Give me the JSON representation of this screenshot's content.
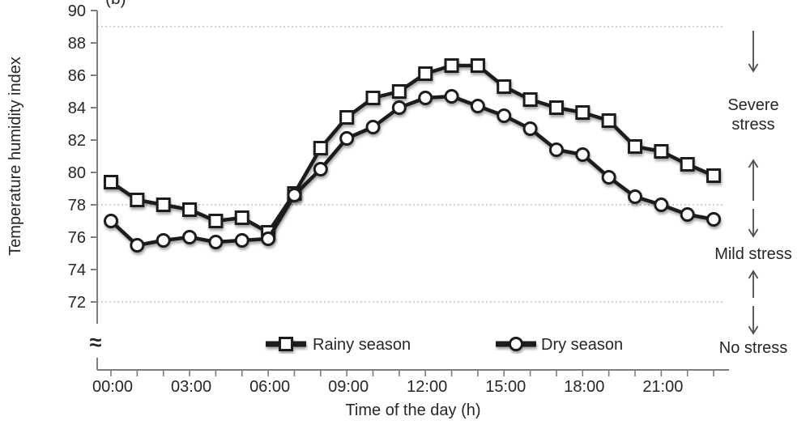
{
  "figure": {
    "panel_label": "(b)"
  },
  "chart_data": {
    "type": "line",
    "title": "",
    "xlabel": "Time of the day (h)",
    "ylabel": "Temperature humidity index",
    "ylim": [
      72,
      90
    ],
    "ytick_step": 2,
    "axis_break_symbol": "≈",
    "grid": "horizontal-dotted-reference-lines-only",
    "x_hours": [
      0,
      1,
      2,
      3,
      4,
      5,
      6,
      7,
      8,
      9,
      10,
      11,
      12,
      13,
      14,
      15,
      16,
      17,
      18,
      19,
      20,
      21,
      22,
      23
    ],
    "x_tick_hours": [
      0,
      3,
      6,
      9,
      12,
      15,
      18,
      21
    ],
    "x_tick_labels": [
      "00:00",
      "03:00",
      "06:00",
      "09:00",
      "12:00",
      "15:00",
      "18:00",
      "21:00"
    ],
    "reference_lines": [
      89,
      78,
      72
    ],
    "series": [
      {
        "name": "Rainy season",
        "marker": "square",
        "values": [
          79.4,
          78.3,
          78.0,
          77.7,
          77.0,
          77.2,
          76.3,
          78.7,
          81.5,
          83.4,
          84.6,
          85.0,
          86.1,
          86.6,
          86.6,
          85.3,
          84.5,
          84.0,
          83.7,
          83.2,
          81.6,
          81.3,
          80.5,
          79.8
        ]
      },
      {
        "name": "Dry season",
        "marker": "circle",
        "values": [
          77.0,
          75.5,
          75.8,
          76.0,
          75.7,
          75.8,
          75.9,
          78.6,
          80.2,
          82.1,
          82.8,
          84.0,
          84.6,
          84.7,
          84.1,
          83.5,
          82.7,
          81.4,
          81.1,
          79.7,
          78.5,
          78.0,
          77.4,
          77.1
        ]
      }
    ],
    "legend_position": "inside-bottom-center",
    "stress_zones": [
      {
        "label": "Severe stress",
        "lines": [
          "Severe",
          "stress"
        ],
        "range": [
          78,
          89
        ]
      },
      {
        "label": "Mild stress",
        "lines": [
          "Mild stress"
        ],
        "range": [
          72,
          78
        ]
      },
      {
        "label": "No stress",
        "lines": [
          "No stress"
        ],
        "range": [
          null,
          72
        ]
      }
    ],
    "colors": {
      "line": "#1a1a1a",
      "marker_fill": "#ffffff",
      "grid": "#c2c2c2",
      "axis": "#7d7d7d",
      "text": "#262626",
      "arrow": "#4f4f4f"
    }
  }
}
